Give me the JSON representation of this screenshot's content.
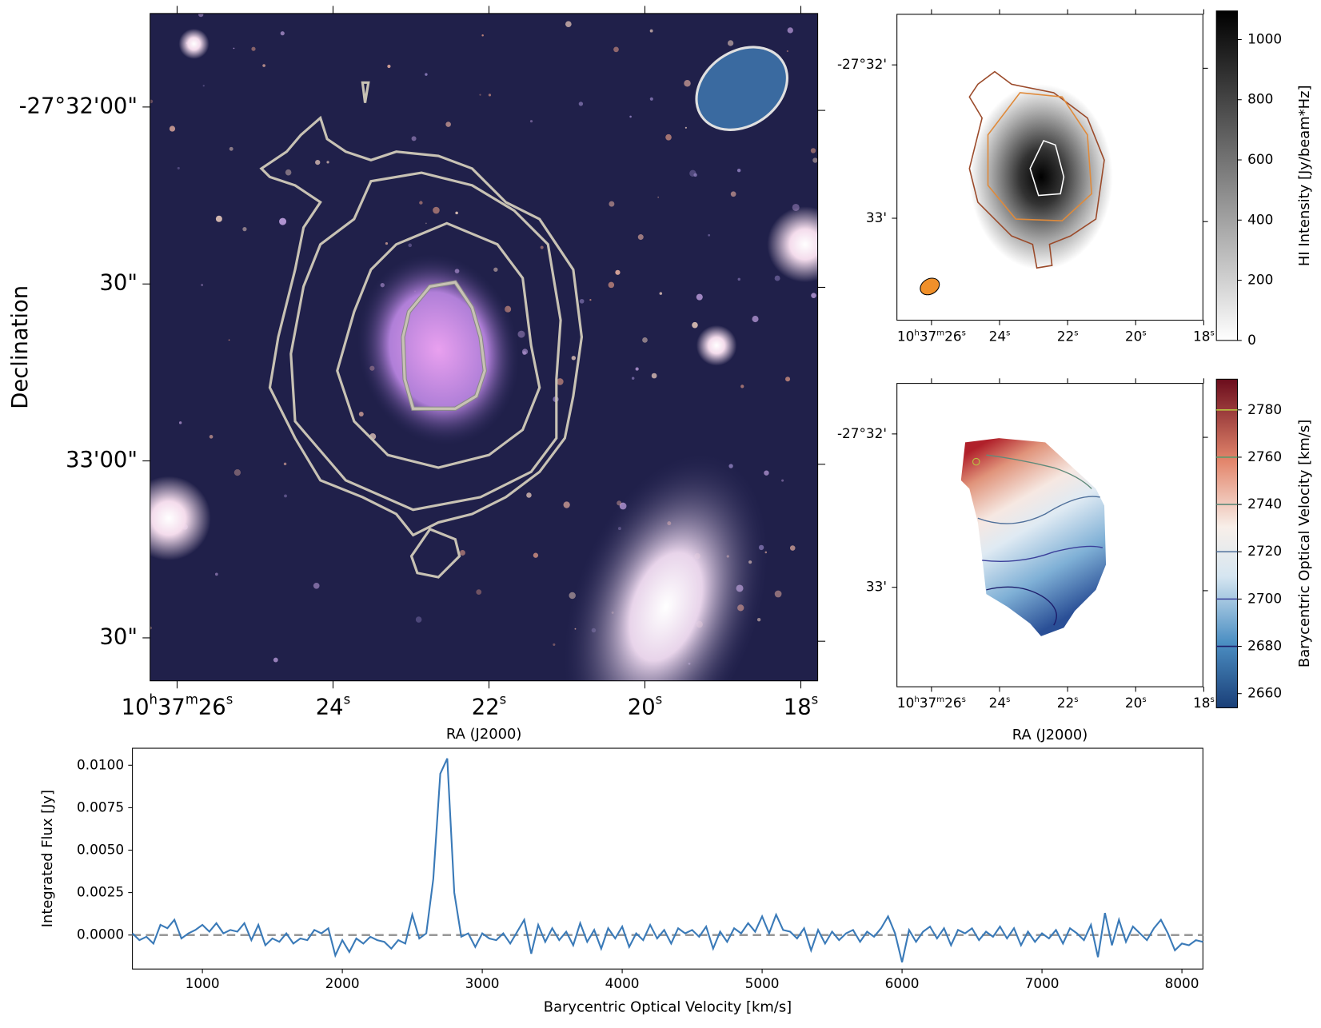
{
  "chart_data": [
    {
      "type": "image",
      "xlabel": "RA (J2000)",
      "ylabel": "Declination",
      "ra_ticks": [
        "10h37m26s",
        "24s",
        "22s",
        "20s",
        "18s"
      ],
      "dec_ticks": [
        "-27°32'00\"",
        "30\"",
        "33'00\"",
        "30\""
      ]
    },
    {
      "type": "image",
      "xlabel": "",
      "ra_ticks": [
        "10h37m26s",
        "24s",
        "22s",
        "20s",
        "18s"
      ],
      "dec_ticks": [
        "-27°32'",
        "33'"
      ],
      "colorbar": {
        "label": "HI Intensity [Jy/beam*Hz]",
        "clim": [
          0,
          1095
        ],
        "ticks": [
          0,
          200,
          400,
          600,
          800,
          1000
        ],
        "cmap": "gray_r"
      }
    },
    {
      "type": "image",
      "xlabel": "RA (J2000)",
      "ra_ticks": [
        "10h37m26s",
        "24s",
        "22s",
        "20s",
        "18s"
      ],
      "dec_ticks": [
        "-27°32'",
        "33'"
      ],
      "colorbar": {
        "label": "Barycentric Optical Velocity [km/s]",
        "clim": [
          2654,
          2793
        ],
        "ticks": [
          2660,
          2680,
          2700,
          2720,
          2740,
          2760,
          2780
        ],
        "cmap": "RdBu_r",
        "contour_levels": [
          2680,
          2700,
          2720,
          2740,
          2760,
          2780
        ],
        "contour_colors": [
          "#1d1d6b",
          "#3b3f9a",
          "#4e6f9a",
          "#5f8a7a",
          "#5a9a6a",
          "#b8c640"
        ]
      }
    },
    {
      "type": "line",
      "xlabel": "Barycentric Optical Velocity [km/s]",
      "ylabel": "Integrated Flux [Jy]",
      "color": "#3a7ab8",
      "xlim": [
        500,
        8150
      ],
      "ylim": [
        -0.002,
        0.011
      ],
      "xticks": [
        1000,
        2000,
        3000,
        4000,
        5000,
        6000,
        7000,
        8000
      ],
      "yticks": [
        {
          "value": 0,
          "label": "0.0000"
        },
        {
          "value": 0.0025,
          "label": "0.0025"
        },
        {
          "value": 0.005,
          "label": "0.0050"
        },
        {
          "value": 0.0075,
          "label": "0.0075"
        },
        {
          "value": 0.01,
          "label": "0.0100"
        }
      ],
      "reference_line": 0,
      "reference_color": "#999999",
      "x": [
        500,
        550,
        600,
        650,
        700,
        750,
        800,
        850,
        900,
        950,
        1000,
        1050,
        1100,
        1150,
        1200,
        1250,
        1300,
        1350,
        1400,
        1450,
        1500,
        1550,
        1600,
        1650,
        1700,
        1750,
        1800,
        1850,
        1900,
        1950,
        2000,
        2050,
        2100,
        2150,
        2200,
        2250,
        2300,
        2350,
        2400,
        2450,
        2500,
        2550,
        2600,
        2650,
        2700,
        2750,
        2800,
        2850,
        2900,
        2950,
        3000,
        3050,
        3100,
        3150,
        3200,
        3250,
        3300,
        3350,
        3400,
        3450,
        3500,
        3550,
        3600,
        3650,
        3700,
        3750,
        3800,
        3850,
        3900,
        3950,
        4000,
        4050,
        4100,
        4150,
        4200,
        4250,
        4300,
        4350,
        4400,
        4450,
        4500,
        4550,
        4600,
        4650,
        4700,
        4750,
        4800,
        4850,
        4900,
        4950,
        5000,
        5050,
        5100,
        5150,
        5200,
        5250,
        5300,
        5350,
        5400,
        5450,
        5500,
        5550,
        5600,
        5650,
        5700,
        5750,
        5800,
        5850,
        5900,
        5950,
        6000,
        6050,
        6100,
        6150,
        6200,
        6250,
        6300,
        6350,
        6400,
        6450,
        6500,
        6550,
        6600,
        6650,
        6700,
        6750,
        6800,
        6850,
        6900,
        6950,
        7000,
        7050,
        7100,
        7150,
        7200,
        7250,
        7300,
        7350,
        7400,
        7450,
        7500,
        7550,
        7600,
        7650,
        7700,
        7750,
        7800,
        7850,
        7900,
        7950,
        8000,
        8050,
        8100,
        8150
      ],
      "values": [
        0.0001,
        -0.0003,
        -0.0001,
        -0.0005,
        0.0006,
        0.0004,
        0.0009,
        -0.0002,
        0.0001,
        0.0003,
        0.0006,
        0.0002,
        0.0007,
        0.0001,
        0.0003,
        0.0002,
        0.0007,
        -0.0003,
        0.0006,
        -0.0006,
        -0.0002,
        -0.0004,
        0.0001,
        -0.0005,
        -0.0002,
        -0.0003,
        0.0003,
        0.0001,
        0.0004,
        -0.0012,
        -0.0003,
        -0.001,
        -0.0002,
        -0.0005,
        -0.0001,
        -0.0003,
        -0.0004,
        -0.0008,
        -0.0003,
        -0.0005,
        0.0012,
        -0.0002,
        0.0001,
        0.0033,
        0.0095,
        0.0104,
        0.0025,
        -0.0001,
        0.0001,
        -0.0007,
        0.0001,
        -0.0002,
        -0.0003,
        0.0001,
        -0.0005,
        0.0002,
        0.0009,
        -0.0011,
        0.0006,
        -0.0004,
        0.0004,
        -0.0003,
        0.0002,
        -0.0006,
        0.0007,
        -0.0004,
        0.0003,
        -0.0008,
        0.0004,
        -0.0002,
        0.0005,
        -0.0007,
        0.0001,
        -0.0003,
        0.0006,
        -0.0002,
        0.0003,
        -0.0005,
        0.0004,
        0.0001,
        0.0003,
        -0.0001,
        0.0005,
        -0.0008,
        0.0002,
        -0.0004,
        0.0004,
        0.0001,
        0.0007,
        0.0002,
        0.0011,
        0.0001,
        0.0012,
        0.0003,
        0.0002,
        -0.0002,
        0.0004,
        -0.0009,
        0.0003,
        -0.0005,
        0.0002,
        -0.0003,
        0.0001,
        0.0003,
        -0.0004,
        0.0002,
        -0.0001,
        0.0004,
        0.0011,
        0.0001,
        -0.0016,
        0.0003,
        -0.0004,
        0.0002,
        0.0005,
        -0.0002,
        0.0004,
        -0.0006,
        0.0003,
        0.0001,
        0.0004,
        -0.0003,
        0.0002,
        -0.0001,
        0.0005,
        -0.0002,
        0.0004,
        -0.0006,
        0.0002,
        -0.0004,
        0.0001,
        -0.0002,
        0.0003,
        -0.0005,
        0.0004,
        0.0001,
        -0.0003,
        0.0006,
        -0.0013,
        0.0013,
        -0.0006,
        0.0009,
        -0.0004,
        0.0005,
        0.0001,
        -0.0003,
        0.0004,
        0.0009,
        0.0001,
        -0.0009,
        -0.0005,
        -0.0006,
        -0.0003,
        -0.0004
      ]
    }
  ]
}
